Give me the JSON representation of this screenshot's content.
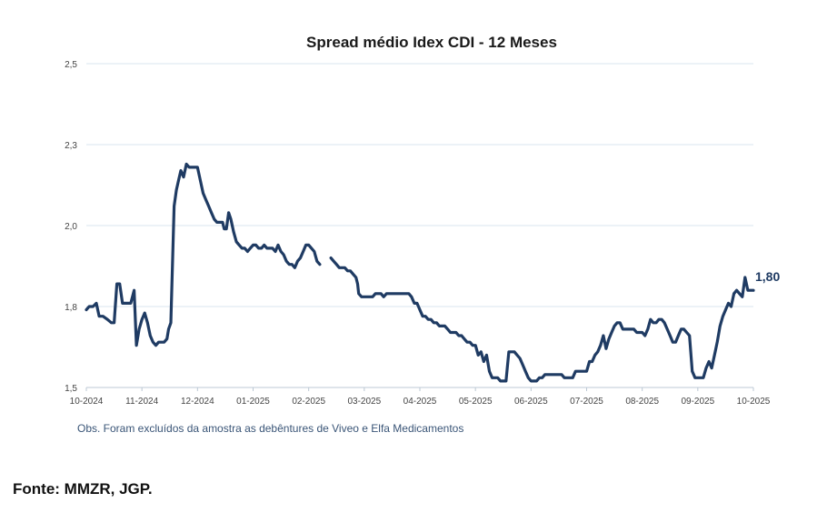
{
  "chart_data": {
    "type": "line",
    "title": "Spread médio Idex CDI -  12 Meses",
    "xlabel": "",
    "ylabel": "",
    "ylim": [
      1.5,
      2.5
    ],
    "y_ticks": [
      "1,5",
      "1,8",
      "2,0",
      "2,3",
      "2,5"
    ],
    "y_tick_values": [
      1.5,
      1.75,
      2.0,
      2.25,
      2.5
    ],
    "x_ticks": [
      "10-2024",
      "11-2024",
      "12-2024",
      "01-2025",
      "02-2025",
      "03-2025",
      "04-2025",
      "05-2025",
      "06-2025",
      "07-2025",
      "08-2025",
      "09-2025",
      "10-2025"
    ],
    "x_range_months": [
      0,
      12
    ],
    "grid": true,
    "last_value_label": "1,80",
    "series": [
      {
        "name": "Spread médio Idex CDI",
        "color": "#1f3b63",
        "segments": [
          [
            [
              0.0,
              1.74
            ],
            [
              0.05,
              1.75
            ],
            [
              0.12,
              1.75
            ],
            [
              0.18,
              1.76
            ],
            [
              0.23,
              1.72
            ],
            [
              0.3,
              1.72
            ],
            [
              0.38,
              1.71
            ],
            [
              0.45,
              1.7
            ],
            [
              0.5,
              1.7
            ],
            [
              0.55,
              1.82
            ],
            [
              0.6,
              1.82
            ],
            [
              0.65,
              1.76
            ],
            [
              0.7,
              1.76
            ],
            [
              0.75,
              1.76
            ],
            [
              0.8,
              1.76
            ],
            [
              0.86,
              1.8
            ],
            [
              0.9,
              1.63
            ],
            [
              0.95,
              1.68
            ],
            [
              1.0,
              1.71
            ],
            [
              1.05,
              1.73
            ],
            [
              1.1,
              1.7
            ],
            [
              1.15,
              1.66
            ],
            [
              1.2,
              1.64
            ],
            [
              1.25,
              1.63
            ],
            [
              1.3,
              1.64
            ],
            [
              1.35,
              1.64
            ],
            [
              1.4,
              1.64
            ],
            [
              1.45,
              1.65
            ],
            [
              1.48,
              1.68
            ],
            [
              1.52,
              1.7
            ],
            [
              1.55,
              1.88
            ],
            [
              1.58,
              2.06
            ],
            [
              1.62,
              2.11
            ],
            [
              1.66,
              2.14
            ],
            [
              1.7,
              2.17
            ],
            [
              1.75,
              2.15
            ],
            [
              1.8,
              2.19
            ],
            [
              1.85,
              2.18
            ],
            [
              1.9,
              2.18
            ],
            [
              1.95,
              2.18
            ],
            [
              2.0,
              2.18
            ],
            [
              2.05,
              2.14
            ],
            [
              2.1,
              2.1
            ],
            [
              2.15,
              2.08
            ],
            [
              2.2,
              2.06
            ],
            [
              2.25,
              2.04
            ],
            [
              2.3,
              2.02
            ],
            [
              2.35,
              2.01
            ],
            [
              2.4,
              2.01
            ],
            [
              2.45,
              2.01
            ],
            [
              2.48,
              1.99
            ],
            [
              2.52,
              1.99
            ],
            [
              2.56,
              2.04
            ],
            [
              2.6,
              2.02
            ],
            [
              2.65,
              1.98
            ],
            [
              2.7,
              1.95
            ],
            [
              2.75,
              1.94
            ],
            [
              2.8,
              1.93
            ],
            [
              2.85,
              1.93
            ],
            [
              2.9,
              1.92
            ],
            [
              2.95,
              1.93
            ],
            [
              3.0,
              1.94
            ],
            [
              3.05,
              1.94
            ],
            [
              3.1,
              1.93
            ],
            [
              3.15,
              1.93
            ],
            [
              3.2,
              1.94
            ],
            [
              3.25,
              1.93
            ],
            [
              3.3,
              1.93
            ],
            [
              3.35,
              1.93
            ],
            [
              3.4,
              1.92
            ],
            [
              3.45,
              1.94
            ],
            [
              3.5,
              1.92
            ],
            [
              3.55,
              1.91
            ],
            [
              3.6,
              1.89
            ],
            [
              3.65,
              1.88
            ],
            [
              3.7,
              1.88
            ],
            [
              3.75,
              1.87
            ],
            [
              3.8,
              1.89
            ],
            [
              3.85,
              1.9
            ],
            [
              3.9,
              1.92
            ],
            [
              3.95,
              1.94
            ],
            [
              4.0,
              1.94
            ],
            [
              4.05,
              1.93
            ],
            [
              4.1,
              1.92
            ],
            [
              4.15,
              1.89
            ],
            [
              4.2,
              1.88
            ]
          ],
          [
            [
              4.4,
              1.9
            ],
            [
              4.45,
              1.89
            ],
            [
              4.5,
              1.88
            ],
            [
              4.55,
              1.87
            ],
            [
              4.6,
              1.87
            ],
            [
              4.65,
              1.87
            ],
            [
              4.7,
              1.86
            ],
            [
              4.75,
              1.86
            ],
            [
              4.8,
              1.85
            ],
            [
              4.85,
              1.84
            ],
            [
              4.88,
              1.82
            ],
            [
              4.9,
              1.79
            ],
            [
              4.95,
              1.78
            ],
            [
              5.0,
              1.78
            ],
            [
              5.05,
              1.78
            ],
            [
              5.1,
              1.78
            ],
            [
              5.15,
              1.78
            ],
            [
              5.2,
              1.79
            ],
            [
              5.25,
              1.79
            ],
            [
              5.3,
              1.79
            ],
            [
              5.35,
              1.78
            ],
            [
              5.4,
              1.79
            ],
            [
              5.45,
              1.79
            ],
            [
              5.5,
              1.79
            ],
            [
              5.55,
              1.79
            ],
            [
              5.6,
              1.79
            ],
            [
              5.65,
              1.79
            ],
            [
              5.7,
              1.79
            ],
            [
              5.75,
              1.79
            ],
            [
              5.8,
              1.79
            ],
            [
              5.85,
              1.78
            ],
            [
              5.9,
              1.76
            ],
            [
              5.95,
              1.76
            ],
            [
              6.0,
              1.74
            ],
            [
              6.05,
              1.72
            ],
            [
              6.1,
              1.72
            ],
            [
              6.15,
              1.71
            ],
            [
              6.2,
              1.71
            ],
            [
              6.25,
              1.7
            ],
            [
              6.3,
              1.7
            ],
            [
              6.35,
              1.69
            ],
            [
              6.4,
              1.69
            ],
            [
              6.45,
              1.69
            ],
            [
              6.5,
              1.68
            ],
            [
              6.55,
              1.67
            ],
            [
              6.6,
              1.67
            ],
            [
              6.65,
              1.67
            ],
            [
              6.7,
              1.66
            ],
            [
              6.75,
              1.66
            ],
            [
              6.8,
              1.65
            ],
            [
              6.85,
              1.64
            ],
            [
              6.9,
              1.64
            ],
            [
              6.95,
              1.63
            ],
            [
              7.0,
              1.63
            ],
            [
              7.05,
              1.6
            ],
            [
              7.1,
              1.61
            ],
            [
              7.15,
              1.58
            ],
            [
              7.2,
              1.6
            ],
            [
              7.25,
              1.55
            ],
            [
              7.3,
              1.53
            ],
            [
              7.35,
              1.53
            ],
            [
              7.4,
              1.53
            ],
            [
              7.45,
              1.52
            ],
            [
              7.5,
              1.52
            ],
            [
              7.55,
              1.52
            ],
            [
              7.6,
              1.61
            ],
            [
              7.65,
              1.61
            ],
            [
              7.7,
              1.61
            ],
            [
              7.75,
              1.6
            ],
            [
              7.8,
              1.59
            ],
            [
              7.85,
              1.57
            ],
            [
              7.9,
              1.55
            ],
            [
              7.95,
              1.53
            ],
            [
              8.0,
              1.52
            ],
            [
              8.05,
              1.52
            ],
            [
              8.1,
              1.52
            ],
            [
              8.15,
              1.53
            ],
            [
              8.2,
              1.53
            ],
            [
              8.25,
              1.54
            ],
            [
              8.3,
              1.54
            ],
            [
              8.35,
              1.54
            ],
            [
              8.4,
              1.54
            ],
            [
              8.45,
              1.54
            ],
            [
              8.5,
              1.54
            ],
            [
              8.55,
              1.54
            ],
            [
              8.6,
              1.53
            ],
            [
              8.65,
              1.53
            ],
            [
              8.7,
              1.53
            ],
            [
              8.75,
              1.53
            ],
            [
              8.8,
              1.55
            ],
            [
              8.85,
              1.55
            ],
            [
              8.9,
              1.55
            ],
            [
              8.95,
              1.55
            ],
            [
              9.0,
              1.55
            ],
            [
              9.05,
              1.58
            ],
            [
              9.1,
              1.58
            ],
            [
              9.15,
              1.6
            ],
            [
              9.2,
              1.61
            ],
            [
              9.25,
              1.63
            ],
            [
              9.3,
              1.66
            ],
            [
              9.35,
              1.62
            ],
            [
              9.4,
              1.65
            ],
            [
              9.45,
              1.67
            ],
            [
              9.5,
              1.69
            ],
            [
              9.55,
              1.7
            ],
            [
              9.6,
              1.7
            ],
            [
              9.65,
              1.68
            ],
            [
              9.7,
              1.68
            ],
            [
              9.75,
              1.68
            ],
            [
              9.8,
              1.68
            ],
            [
              9.85,
              1.68
            ],
            [
              9.9,
              1.67
            ],
            [
              9.95,
              1.67
            ],
            [
              10.0,
              1.67
            ],
            [
              10.05,
              1.66
            ],
            [
              10.1,
              1.68
            ],
            [
              10.15,
              1.71
            ],
            [
              10.2,
              1.7
            ],
            [
              10.25,
              1.7
            ],
            [
              10.3,
              1.71
            ],
            [
              10.35,
              1.71
            ],
            [
              10.4,
              1.7
            ],
            [
              10.45,
              1.68
            ],
            [
              10.5,
              1.66
            ],
            [
              10.55,
              1.64
            ],
            [
              10.6,
              1.64
            ],
            [
              10.65,
              1.66
            ],
            [
              10.7,
              1.68
            ],
            [
              10.75,
              1.68
            ],
            [
              10.8,
              1.67
            ],
            [
              10.85,
              1.66
            ],
            [
              10.9,
              1.55
            ],
            [
              10.95,
              1.53
            ],
            [
              11.0,
              1.53
            ],
            [
              11.05,
              1.53
            ],
            [
              11.1,
              1.53
            ],
            [
              11.15,
              1.56
            ],
            [
              11.2,
              1.58
            ],
            [
              11.25,
              1.56
            ],
            [
              11.3,
              1.6
            ],
            [
              11.35,
              1.64
            ],
            [
              11.4,
              1.69
            ],
            [
              11.45,
              1.72
            ],
            [
              11.5,
              1.74
            ],
            [
              11.55,
              1.76
            ],
            [
              11.6,
              1.75
            ],
            [
              11.65,
              1.79
            ],
            [
              11.7,
              1.8
            ],
            [
              11.75,
              1.79
            ],
            [
              11.8,
              1.78
            ],
            [
              11.85,
              1.84
            ],
            [
              11.9,
              1.8
            ],
            [
              11.95,
              1.8
            ],
            [
              12.0,
              1.8
            ]
          ]
        ]
      }
    ]
  },
  "note": "Obs. Foram excluídos da amostra as debêntures de Viveo e Elfa Medicamentos",
  "source": "Fonte: MMZR, JGP."
}
